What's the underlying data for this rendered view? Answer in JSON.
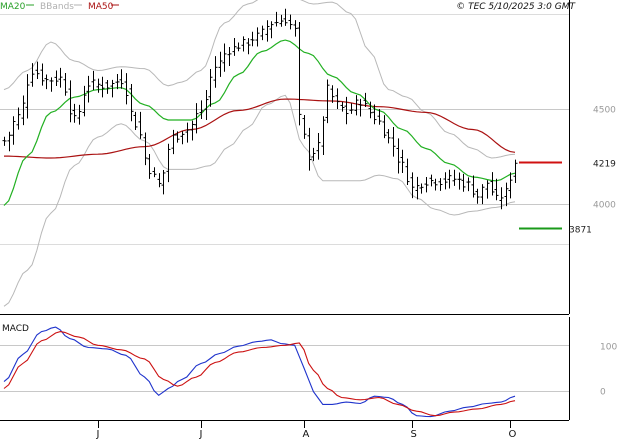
{
  "header": {
    "legend": [
      {
        "label": "MA20",
        "color": "#2aa02a"
      },
      {
        "label": "BBands",
        "color": "#b0b0b0"
      },
      {
        "label": "MA50",
        "color": "#aa1111"
      }
    ],
    "copyright": "© TEC 5/10/2025 3:0 GMT"
  },
  "colors": {
    "price": "#000000",
    "ma20": "#22b022",
    "ma50": "#aa1111",
    "bbands": "#b8b8b8",
    "macd": "#1f33cc",
    "signal": "#cc1111",
    "grid": "#c8c8c8",
    "resistance": "#d01010",
    "support": "#1a9a1a"
  },
  "chart_data": [
    {
      "type": "line",
      "name": "price",
      "ylim": [
        3430,
        5050
      ],
      "yticks": [
        4000,
        4500
      ],
      "ytick_labels": [
        "4000",
        "4500"
      ],
      "x_months": [
        {
          "label": "J",
          "index": 20
        },
        {
          "label": "J",
          "index": 42
        },
        {
          "label": "A",
          "index": 64
        },
        {
          "label": "S",
          "index": 87
        },
        {
          "label": "O",
          "index": 108
        }
      ],
      "n_points": 110,
      "price_anchors": [
        [
          0,
          4330
        ],
        [
          3,
          4460
        ],
        [
          6,
          4700
        ],
        [
          9,
          4650
        ],
        [
          12,
          4660
        ],
        [
          15,
          4440
        ],
        [
          18,
          4630
        ],
        [
          22,
          4620
        ],
        [
          25,
          4650
        ],
        [
          28,
          4420
        ],
        [
          31,
          4180
        ],
        [
          33,
          4100
        ],
        [
          36,
          4350
        ],
        [
          39,
          4390
        ],
        [
          42,
          4490
        ],
        [
          45,
          4720
        ],
        [
          48,
          4810
        ],
        [
          51,
          4840
        ],
        [
          54,
          4880
        ],
        [
          57,
          4950
        ],
        [
          60,
          4970
        ],
        [
          62,
          4910
        ],
        [
          63,
          4450
        ],
        [
          65,
          4250
        ],
        [
          67,
          4300
        ],
        [
          69,
          4600
        ],
        [
          71,
          4520
        ],
        [
          73,
          4480
        ],
        [
          76,
          4540
        ],
        [
          78,
          4480
        ],
        [
          80,
          4430
        ],
        [
          82,
          4340
        ],
        [
          85,
          4200
        ],
        [
          87,
          4080
        ],
        [
          90,
          4120
        ],
        [
          93,
          4120
        ],
        [
          96,
          4130
        ],
        [
          99,
          4100
        ],
        [
          101,
          4040
        ],
        [
          103,
          4110
        ],
        [
          105,
          4020
        ],
        [
          107,
          4060
        ],
        [
          109,
          4220
        ]
      ],
      "ma20_anchors": [
        [
          0,
          3990
        ],
        [
          5,
          4250
        ],
        [
          10,
          4480
        ],
        [
          15,
          4560
        ],
        [
          20,
          4600
        ],
        [
          25,
          4610
        ],
        [
          30,
          4520
        ],
        [
          35,
          4440
        ],
        [
          40,
          4440
        ],
        [
          45,
          4530
        ],
        [
          50,
          4680
        ],
        [
          55,
          4800
        ],
        [
          60,
          4860
        ],
        [
          65,
          4790
        ],
        [
          70,
          4670
        ],
        [
          75,
          4580
        ],
        [
          80,
          4490
        ],
        [
          85,
          4390
        ],
        [
          90,
          4290
        ],
        [
          95,
          4210
        ],
        [
          100,
          4140
        ],
        [
          105,
          4120
        ],
        [
          109,
          4160
        ]
      ],
      "ma50_anchors": [
        [
          0,
          4250
        ],
        [
          10,
          4240
        ],
        [
          20,
          4260
        ],
        [
          30,
          4300
        ],
        [
          40,
          4390
        ],
        [
          50,
          4490
        ],
        [
          60,
          4550
        ],
        [
          70,
          4540
        ],
        [
          80,
          4510
        ],
        [
          90,
          4480
        ],
        [
          100,
          4390
        ],
        [
          109,
          4270
        ]
      ],
      "bb_upper_anchors": [
        [
          0,
          4600
        ],
        [
          5,
          4700
        ],
        [
          10,
          4850
        ],
        [
          15,
          4750
        ],
        [
          20,
          4700
        ],
        [
          25,
          4720
        ],
        [
          30,
          4710
        ],
        [
          35,
          4620
        ],
        [
          38,
          4640
        ],
        [
          42,
          4700
        ],
        [
          47,
          4950
        ],
        [
          52,
          5050
        ],
        [
          57,
          5110
        ],
        [
          62,
          5080
        ],
        [
          66,
          5050
        ],
        [
          70,
          5060
        ],
        [
          74,
          5000
        ],
        [
          78,
          4800
        ],
        [
          82,
          4600
        ],
        [
          86,
          4560
        ],
        [
          90,
          4480
        ],
        [
          95,
          4370
        ],
        [
          100,
          4290
        ],
        [
          104,
          4240
        ],
        [
          109,
          4260
        ]
      ],
      "bb_lower_anchors": [
        [
          0,
          3460
        ],
        [
          5,
          3650
        ],
        [
          10,
          3950
        ],
        [
          15,
          4200
        ],
        [
          20,
          4350
        ],
        [
          25,
          4420
        ],
        [
          30,
          4330
        ],
        [
          35,
          4180
        ],
        [
          40,
          4180
        ],
        [
          44,
          4200
        ],
        [
          48,
          4300
        ],
        [
          52,
          4400
        ],
        [
          56,
          4520
        ],
        [
          60,
          4570
        ],
        [
          64,
          4300
        ],
        [
          68,
          4120
        ],
        [
          72,
          4120
        ],
        [
          76,
          4120
        ],
        [
          80,
          4150
        ],
        [
          84,
          4130
        ],
        [
          88,
          4030
        ],
        [
          92,
          3970
        ],
        [
          96,
          3940
        ],
        [
          100,
          3960
        ],
        [
          105,
          3980
        ],
        [
          109,
          4010
        ]
      ],
      "level_labels": [
        {
          "value": 4219,
          "label": "4219",
          "role": "resistance"
        },
        {
          "value": 3871,
          "label": "3871",
          "role": "support"
        }
      ]
    },
    {
      "type": "line",
      "name": "MACD",
      "ylim": [
        -60,
        160
      ],
      "yticks": [
        0,
        100
      ],
      "ytick_labels": [
        "0",
        "100"
      ],
      "macd_anchors": [
        [
          0,
          20
        ],
        [
          4,
          80
        ],
        [
          8,
          130
        ],
        [
          11,
          140
        ],
        [
          14,
          115
        ],
        [
          18,
          95
        ],
        [
          22,
          92
        ],
        [
          26,
          78
        ],
        [
          30,
          30
        ],
        [
          33,
          -10
        ],
        [
          35,
          5
        ],
        [
          38,
          25
        ],
        [
          42,
          60
        ],
        [
          46,
          82
        ],
        [
          50,
          98
        ],
        [
          54,
          108
        ],
        [
          57,
          112
        ],
        [
          59,
          104
        ],
        [
          62,
          100
        ],
        [
          64,
          50
        ],
        [
          66,
          -2
        ],
        [
          68,
          -30
        ],
        [
          70,
          -30
        ],
        [
          73,
          -25
        ],
        [
          76,
          -28
        ],
        [
          79,
          -12
        ],
        [
          82,
          -15
        ],
        [
          85,
          -30
        ],
        [
          88,
          -55
        ],
        [
          91,
          -57
        ],
        [
          95,
          -45
        ],
        [
          99,
          -36
        ],
        [
          103,
          -28
        ],
        [
          106,
          -25
        ],
        [
          109,
          -12
        ]
      ],
      "signal_anchors": [
        [
          0,
          5
        ],
        [
          4,
          60
        ],
        [
          8,
          110
        ],
        [
          12,
          130
        ],
        [
          16,
          118
        ],
        [
          20,
          100
        ],
        [
          25,
          90
        ],
        [
          30,
          70
        ],
        [
          34,
          25
        ],
        [
          37,
          10
        ],
        [
          41,
          30
        ],
        [
          45,
          62
        ],
        [
          50,
          85
        ],
        [
          55,
          95
        ],
        [
          60,
          100
        ],
        [
          63,
          105
        ],
        [
          66,
          45
        ],
        [
          69,
          5
        ],
        [
          72,
          -15
        ],
        [
          76,
          -20
        ],
        [
          80,
          -15
        ],
        [
          84,
          -30
        ],
        [
          88,
          -45
        ],
        [
          92,
          -55
        ],
        [
          96,
          -47
        ],
        [
          101,
          -40
        ],
        [
          106,
          -30
        ],
        [
          109,
          -22
        ]
      ],
      "label": "MACD"
    }
  ]
}
